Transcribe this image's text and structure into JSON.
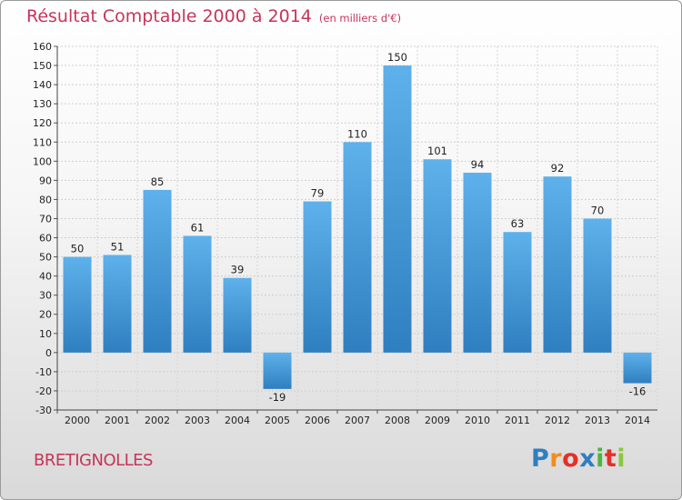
{
  "header": {
    "title": "Résultat Comptable 2000 à 2014",
    "unit": "(en milliers d'€)"
  },
  "footer": {
    "city": "BRETIGNOLLES",
    "logo": [
      "P",
      "r",
      "o",
      "x",
      "i",
      "t",
      "i"
    ]
  },
  "colors": {
    "title": "#c8345a",
    "bar_light": "#5eb1ea",
    "bar_dark": "#2f7fc0",
    "logo": [
      "#2f7fc0",
      "#f28c1b",
      "#e2312a",
      "#2f7fc0",
      "#4bb543",
      "#e2312a",
      "#8cc63f"
    ]
  },
  "chart_data": {
    "type": "bar",
    "title": "Résultat Comptable 2000 à 2014",
    "ylabel": "en milliers d'€",
    "categories": [
      "2000",
      "2001",
      "2002",
      "2003",
      "2004",
      "2005",
      "2006",
      "2007",
      "2008",
      "2009",
      "2010",
      "2011",
      "2012",
      "2013",
      "2014"
    ],
    "values": [
      50,
      51,
      85,
      61,
      39,
      -19,
      79,
      110,
      150,
      101,
      94,
      63,
      92,
      70,
      -16
    ],
    "ylim": [
      -30,
      160
    ],
    "yticks": [
      -30,
      -20,
      -10,
      0,
      10,
      20,
      30,
      40,
      50,
      60,
      70,
      80,
      90,
      100,
      110,
      120,
      130,
      140,
      150,
      160
    ],
    "grid": true
  }
}
